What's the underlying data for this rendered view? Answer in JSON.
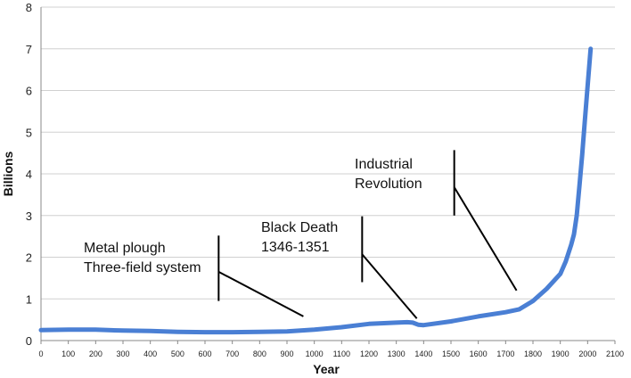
{
  "chart_data": {
    "type": "line",
    "xlabel": "Year",
    "ylabel": "Billions",
    "xlim": [
      0,
      2100
    ],
    "ylim": [
      0,
      8
    ],
    "x_ticks": [
      0,
      100,
      200,
      300,
      400,
      500,
      600,
      700,
      800,
      900,
      1000,
      1100,
      1200,
      1300,
      1400,
      1500,
      1600,
      1700,
      1800,
      1900,
      2000,
      2100
    ],
    "y_ticks": [
      0,
      1,
      2,
      3,
      4,
      5,
      6,
      7,
      8
    ],
    "grid": "horizontal",
    "line_color": "#4a7fd4",
    "series": [
      {
        "x": [
          0,
          100,
          200,
          300,
          400,
          500,
          600,
          700,
          800,
          900,
          1000,
          1100,
          1200,
          1300,
          1340,
          1360,
          1380,
          1400,
          1500,
          1600,
          1700,
          1750,
          1800,
          1850,
          1900,
          1920,
          1940,
          1950,
          1960,
          1970,
          1980,
          1990,
          2000,
          2011
        ],
        "values": [
          0.25,
          0.26,
          0.26,
          0.24,
          0.23,
          0.21,
          0.2,
          0.2,
          0.21,
          0.22,
          0.26,
          0.32,
          0.4,
          0.43,
          0.44,
          0.43,
          0.38,
          0.37,
          0.46,
          0.58,
          0.68,
          0.75,
          0.95,
          1.24,
          1.6,
          1.9,
          2.3,
          2.55,
          3.0,
          3.7,
          4.45,
          5.3,
          6.1,
          7.0
        ]
      }
    ],
    "annotations": [
      {
        "lines": [
          "Metal plough",
          "Three-field system"
        ],
        "marker_x": 650,
        "marker_y": [
          0.95,
          2.52
        ],
        "pointer_from": [
          650,
          1.65
        ],
        "pointer_to": [
          960,
          0.58
        ]
      },
      {
        "lines": [
          "Black Death",
          "1346-1351"
        ],
        "marker_x": 1175,
        "marker_y": [
          1.4,
          2.98
        ],
        "pointer_from": [
          1175,
          2.07
        ],
        "pointer_to": [
          1375,
          0.53
        ]
      },
      {
        "lines": [
          "Industrial",
          "Revolution"
        ],
        "marker_x": 1512,
        "marker_y": [
          3.0,
          4.57
        ],
        "pointer_from": [
          1512,
          3.68
        ],
        "pointer_to": [
          1740,
          1.2
        ]
      }
    ]
  }
}
